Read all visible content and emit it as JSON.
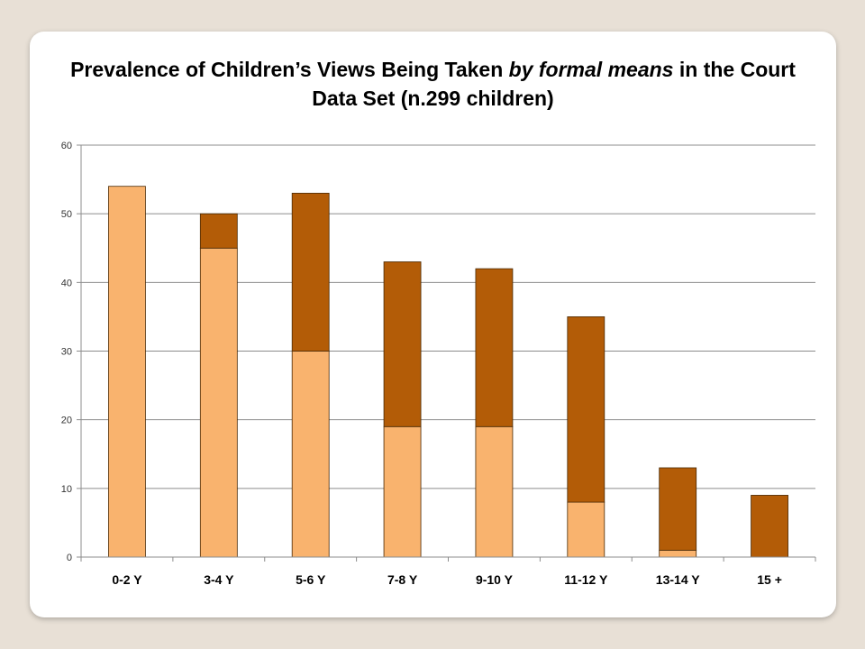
{
  "chart_data": {
    "type": "bar",
    "stacked": true,
    "title_parts": [
      {
        "text": "Prevalence of Children’s Views Being Taken ",
        "italic": false
      },
      {
        "text": "by formal means",
        "italic": true
      },
      {
        "text": " in the Court Data Set (n.299 children)",
        "italic": false
      }
    ],
    "xlabel": "",
    "ylabel": "",
    "categories": [
      "0-2 Y",
      "3-4 Y",
      "5-6 Y",
      "7-8 Y",
      "9-10 Y",
      "11-12 Y",
      "13-14 Y",
      "15 +"
    ],
    "series": [
      {
        "values": [
          54,
          45,
          30,
          19,
          19,
          8,
          1,
          0
        ],
        "color": "#f9b36e"
      },
      {
        "values": [
          0,
          5,
          23,
          24,
          23,
          27,
          12,
          9
        ],
        "color": "#b35c07"
      }
    ],
    "ylim": [
      0,
      60
    ],
    "yticks": [
      0,
      10,
      20,
      30,
      40,
      50,
      60
    ],
    "grid": true,
    "legend": "none"
  }
}
